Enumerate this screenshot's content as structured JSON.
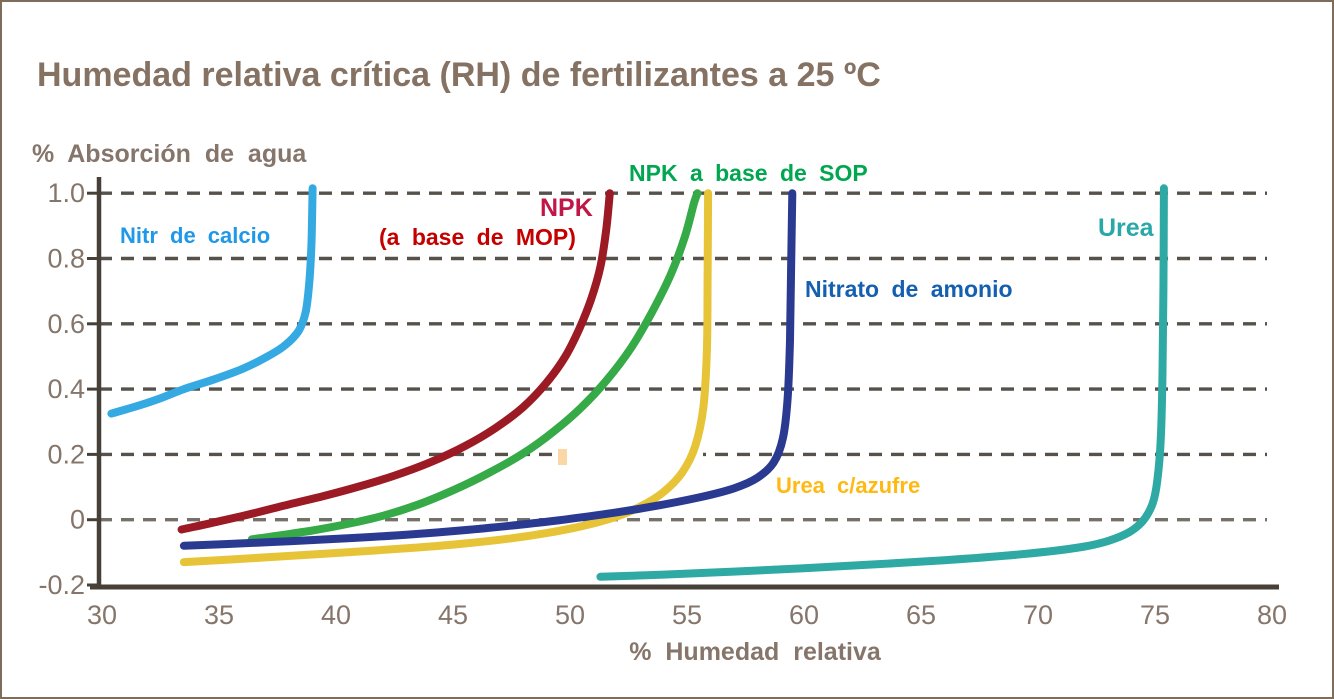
{
  "title": "Humedad relativa crítica (RH) de fertilizantes a 25 ºC",
  "colors": {
    "frame_border": "#7E6D5B",
    "title_text": "#857263",
    "axis_line": "#474038",
    "tick_text": "#85756A",
    "gridline": "#56514B",
    "gridline_zero": "#76706A",
    "background": "#FFFFFF"
  },
  "annotations": {
    "calcio": {
      "text": "Nitr de calcio",
      "color": "#2098E8"
    },
    "npk": {
      "text": "NPK",
      "color": "#C11648"
    },
    "mop": {
      "text": "(a base de MOP)",
      "color": "#C40000"
    },
    "sop": {
      "text": "NPK a base de SOP",
      "color": "#00A650"
    },
    "amonio": {
      "text": "Nitrato de amonio",
      "color": "#155FB0"
    },
    "azufre": {
      "text": "Urea c/azufre",
      "color": "#FEB913"
    },
    "urea": {
      "text": "Urea",
      "color": "#2AA7A9"
    }
  },
  "chart_data": {
    "type": "line",
    "title": "Humedad relativa crítica (RH) de fertilizantes a 25 ºC",
    "xlabel": "% Humedad relativa",
    "ylabel": "% Absorción de agua",
    "xlim": [
      30,
      80
    ],
    "ylim": [
      -0.2,
      1.0
    ],
    "x_ticks": [
      30,
      35,
      40,
      45,
      50,
      55,
      60,
      65,
      70,
      75,
      80
    ],
    "y_ticks": [
      1.0,
      0.8,
      0.6,
      0.4,
      0.2,
      0,
      -0.2
    ],
    "y_tick_labels": [
      "1.0",
      "0.8",
      "0.6",
      "0.4",
      "0.2",
      "0",
      "-0.2"
    ],
    "grid": "horizontal-dashed",
    "legend_position": "inline-labels",
    "series": [
      {
        "key": "calcio",
        "name": "Nitr de calcio",
        "color": "#35A9E1",
        "critical_rh_approx": 39,
        "points": [
          [
            30.4,
            0.325
          ],
          [
            31.5,
            0.348
          ],
          [
            32.5,
            0.372
          ],
          [
            33.5,
            0.4
          ],
          [
            34.8,
            0.43
          ],
          [
            36,
            0.462
          ],
          [
            37,
            0.497
          ],
          [
            37.8,
            0.533
          ],
          [
            38.4,
            0.578
          ],
          [
            38.7,
            0.635
          ],
          [
            38.85,
            0.72
          ],
          [
            38.95,
            0.84
          ],
          [
            39.0,
            1.015
          ]
        ]
      },
      {
        "key": "npk_mop",
        "name": "NPK (a base de MOP)",
        "color": "#9C1A23",
        "critical_rh_approx": 51.7,
        "points": [
          [
            33.4,
            -0.03
          ],
          [
            35,
            -0.005
          ],
          [
            36.5,
            0.02
          ],
          [
            38,
            0.047
          ],
          [
            39.5,
            0.073
          ],
          [
            41,
            0.102
          ],
          [
            42.5,
            0.135
          ],
          [
            44,
            0.175
          ],
          [
            45.5,
            0.225
          ],
          [
            46.8,
            0.28
          ],
          [
            48,
            0.345
          ],
          [
            49,
            0.42
          ],
          [
            49.8,
            0.5
          ],
          [
            50.4,
            0.585
          ],
          [
            50.9,
            0.675
          ],
          [
            51.3,
            0.775
          ],
          [
            51.55,
            0.89
          ],
          [
            51.7,
            1.0
          ]
        ]
      },
      {
        "key": "npk_sop",
        "name": "NPK a base de SOP",
        "color": "#35AA47",
        "critical_rh_approx": 55.5,
        "points": [
          [
            36.4,
            -0.06
          ],
          [
            37.5,
            -0.049
          ],
          [
            39,
            -0.033
          ],
          [
            40.5,
            -0.013
          ],
          [
            42,
            0.012
          ],
          [
            43.5,
            0.046
          ],
          [
            45,
            0.09
          ],
          [
            46.5,
            0.142
          ],
          [
            48,
            0.203
          ],
          [
            49.3,
            0.27
          ],
          [
            50.5,
            0.345
          ],
          [
            51.6,
            0.43
          ],
          [
            52.6,
            0.525
          ],
          [
            53.5,
            0.635
          ],
          [
            54.3,
            0.75
          ],
          [
            54.9,
            0.865
          ],
          [
            55.3,
            0.97
          ],
          [
            55.45,
            1.0
          ]
        ]
      },
      {
        "key": "urea_azufre",
        "name": "Urea c/azufre",
        "color": "#E7C437",
        "critical_rh_approx": 55.9,
        "points": [
          [
            33.5,
            -0.13
          ],
          [
            35.5,
            -0.122
          ],
          [
            37.5,
            -0.113
          ],
          [
            39.5,
            -0.104
          ],
          [
            41.5,
            -0.095
          ],
          [
            43.5,
            -0.085
          ],
          [
            45.5,
            -0.073
          ],
          [
            47.5,
            -0.057
          ],
          [
            49,
            -0.041
          ],
          [
            50.5,
            -0.02
          ],
          [
            51.8,
            0.005
          ],
          [
            53,
            0.04
          ],
          [
            54,
            0.085
          ],
          [
            54.8,
            0.145
          ],
          [
            55.35,
            0.225
          ],
          [
            55.7,
            0.345
          ],
          [
            55.85,
            0.52
          ],
          [
            55.88,
            0.74
          ],
          [
            55.9,
            1.0
          ]
        ]
      },
      {
        "key": "nitrato_amonio",
        "name": "Nitrato de amonio",
        "color": "#2A3A91",
        "critical_rh_approx": 59.4,
        "points": [
          [
            33.5,
            -0.08
          ],
          [
            35.5,
            -0.074
          ],
          [
            38,
            -0.066
          ],
          [
            40.5,
            -0.057
          ],
          [
            43,
            -0.046
          ],
          [
            45.5,
            -0.032
          ],
          [
            47.5,
            -0.018
          ],
          [
            49.5,
            -0.002
          ],
          [
            51.5,
            0.017
          ],
          [
            53.5,
            0.04
          ],
          [
            55.5,
            0.068
          ],
          [
            57,
            0.096
          ],
          [
            58,
            0.128
          ],
          [
            58.7,
            0.175
          ],
          [
            59.1,
            0.25
          ],
          [
            59.3,
            0.37
          ],
          [
            59.4,
            0.55
          ],
          [
            59.45,
            0.77
          ],
          [
            59.5,
            1.0
          ]
        ]
      },
      {
        "key": "urea",
        "name": "Urea",
        "color": "#2FA9A4",
        "critical_rh_approx": 75.3,
        "points": [
          [
            51.3,
            -0.175
          ],
          [
            54,
            -0.168
          ],
          [
            57,
            -0.159
          ],
          [
            60,
            -0.149
          ],
          [
            63,
            -0.137
          ],
          [
            66,
            -0.124
          ],
          [
            68.5,
            -0.111
          ],
          [
            70.5,
            -0.097
          ],
          [
            72,
            -0.082
          ],
          [
            73,
            -0.065
          ],
          [
            73.9,
            -0.038
          ],
          [
            74.5,
            -0.002
          ],
          [
            74.9,
            0.05
          ],
          [
            75.1,
            0.12
          ],
          [
            75.25,
            0.25
          ],
          [
            75.32,
            0.45
          ],
          [
            75.36,
            0.7
          ],
          [
            75.38,
            1.015
          ]
        ]
      }
    ]
  }
}
